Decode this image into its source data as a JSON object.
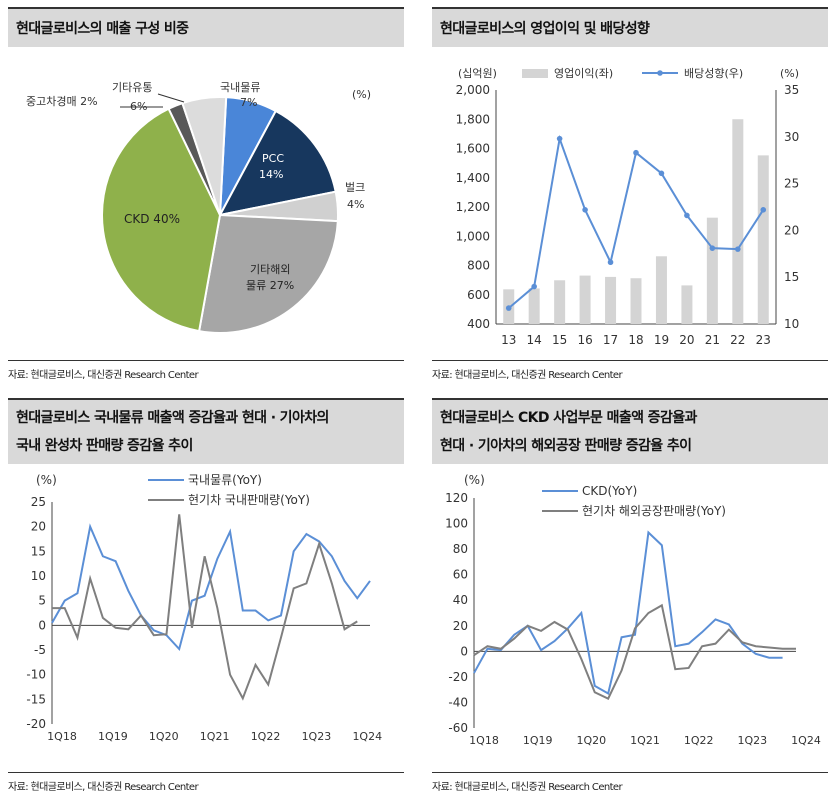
{
  "panels": {
    "p1": {
      "title": "현대글로비스의 매출 구성 비중",
      "source": "자료: 현대글로비스, 대신증권 Research Center"
    },
    "p2": {
      "title": "현대글로비스의 영업이익 및 배당성향",
      "source": "자료: 현대글로비스, 대신증권 Research Center"
    },
    "p3": {
      "title_line1": "현대글로비스 국내물류 매출액 증감율과  현대 · 기아차의",
      "title_line2": "국내 완성차 판매량 증감율 추이",
      "source": "자료: 현대글로비스, 대신증권 Research Center"
    },
    "p4": {
      "title_line1": "현대글로비스 CKD 사업부문 매출액 증감율과",
      "title_line2": "현대 · 기아차의 해외공장 판매량 증감율 추이",
      "source": "자료: 현대글로비스, 대신증권 Research Center"
    }
  },
  "colors": {
    "blue": "#4a86d8",
    "navy": "#17375e",
    "lightgray": "#d0d0d0",
    "midgray": "#a6a6a6",
    "darkgray": "#595959",
    "green": "#8fb14b",
    "ltgray2": "#dcdcdc",
    "line_blue": "#5b8fd6",
    "line_gray": "#7f7f7f"
  },
  "chart_data": [
    {
      "type": "pie",
      "unit_label": "(%)",
      "slices": [
        {
          "label": "국내물류",
          "value_label": "7%",
          "value": 7,
          "color": "#4a86d8"
        },
        {
          "label": "PCC",
          "value_label": "14%",
          "value": 14,
          "color": "#17375e"
        },
        {
          "label": "벌크",
          "value_label": "4%",
          "value": 4,
          "color": "#d0d0d0"
        },
        {
          "label": "기타해외",
          "label2": "물류 27%",
          "value": 27,
          "color": "#a6a6a6"
        },
        {
          "label": "CKD 40%",
          "value": 40,
          "color": "#8fb14b"
        },
        {
          "label": "중고차경매 2%",
          "value": 2,
          "color": "#595959"
        },
        {
          "label": "기타유통",
          "value_label": "6%",
          "value": 6,
          "color": "#dcdcdc"
        }
      ]
    },
    {
      "type": "bar+line",
      "categories": [
        "13",
        "14",
        "15",
        "16",
        "17",
        "18",
        "19",
        "20",
        "21",
        "22",
        "23"
      ],
      "left_unit": "(십억원)",
      "right_unit": "(%)",
      "left_ylim": [
        400,
        2000
      ],
      "left_ticks": [
        "400",
        "600",
        "800",
        "1,000",
        "1,200",
        "1,400",
        "1,600",
        "1,800",
        "2,000"
      ],
      "right_ylim": [
        10,
        35
      ],
      "right_ticks": [
        "10",
        "15",
        "20",
        "25",
        "30",
        "35"
      ],
      "bar_series": {
        "name": "영업이익(좌)",
        "values": [
          637,
          643,
          699,
          731,
          722,
          713,
          863,
          664,
          1127,
          1800,
          1553
        ]
      },
      "line_series": {
        "name": "배당성향(우)",
        "values": [
          11.7,
          14.0,
          29.8,
          22.2,
          16.6,
          28.3,
          26.1,
          21.6,
          18.1,
          18.0,
          22.2
        ]
      }
    },
    {
      "type": "line",
      "unit_label": "(%)",
      "ylim": [
        -20,
        25
      ],
      "y_ticks": [
        "25",
        "20",
        "15",
        "10",
        "5",
        "0",
        "-5",
        "-10",
        "-15",
        "-20"
      ],
      "x_labels": [
        "1Q18",
        "1Q19",
        "1Q20",
        "1Q21",
        "1Q22",
        "1Q23",
        "1Q24"
      ],
      "series": [
        {
          "name": "국내물류(YoY)",
          "values": [
            0.5,
            5.0,
            6.5,
            20.0,
            14.0,
            13.0,
            7.0,
            2.0,
            -1.0,
            -2.0,
            -4.8,
            5.0,
            6.0,
            13.5,
            19.0,
            3.0,
            3.0,
            1.0,
            2.0,
            15.0,
            18.5,
            17.0,
            14.0,
            9.0,
            5.5,
            9.0
          ]
        },
        {
          "name": "현기차 국내판매량(YoY)",
          "values": [
            3.5,
            3.5,
            -2.5,
            9.5,
            1.5,
            -0.5,
            -0.8,
            2.0,
            -2.0,
            -1.8,
            22.5,
            -0.5,
            14.0,
            3.5,
            -10.0,
            -14.8,
            -8.0,
            -12.0,
            -2.5,
            7.5,
            8.5,
            16.5,
            8.5,
            -0.8,
            0.8
          ]
        }
      ]
    },
    {
      "type": "line",
      "unit_label": "(%)",
      "ylim": [
        -60,
        120
      ],
      "y_ticks": [
        "120",
        "100",
        "80",
        "60",
        "40",
        "20",
        "0",
        "-20",
        "-40",
        "-60"
      ],
      "x_labels": [
        "1Q18",
        "1Q19",
        "1Q20",
        "1Q21",
        "1Q22",
        "1Q23",
        "1Q24"
      ],
      "series": [
        {
          "name": "CKD(YoY)",
          "values": [
            -17,
            2,
            1,
            13,
            20,
            1,
            8,
            18,
            30,
            -27,
            -33,
            11,
            13,
            93,
            83,
            4,
            6,
            15,
            25,
            21,
            6,
            -2,
            -5,
            -5
          ]
        },
        {
          "name": "현기차 해외공장판매량(YoY)",
          "values": [
            -3,
            4,
            2,
            10,
            20,
            16,
            23,
            17,
            -6,
            -32,
            -37,
            -15,
            18,
            30,
            36,
            -14,
            -13,
            4,
            6,
            17,
            7,
            4,
            3,
            2,
            2
          ]
        }
      ]
    }
  ]
}
